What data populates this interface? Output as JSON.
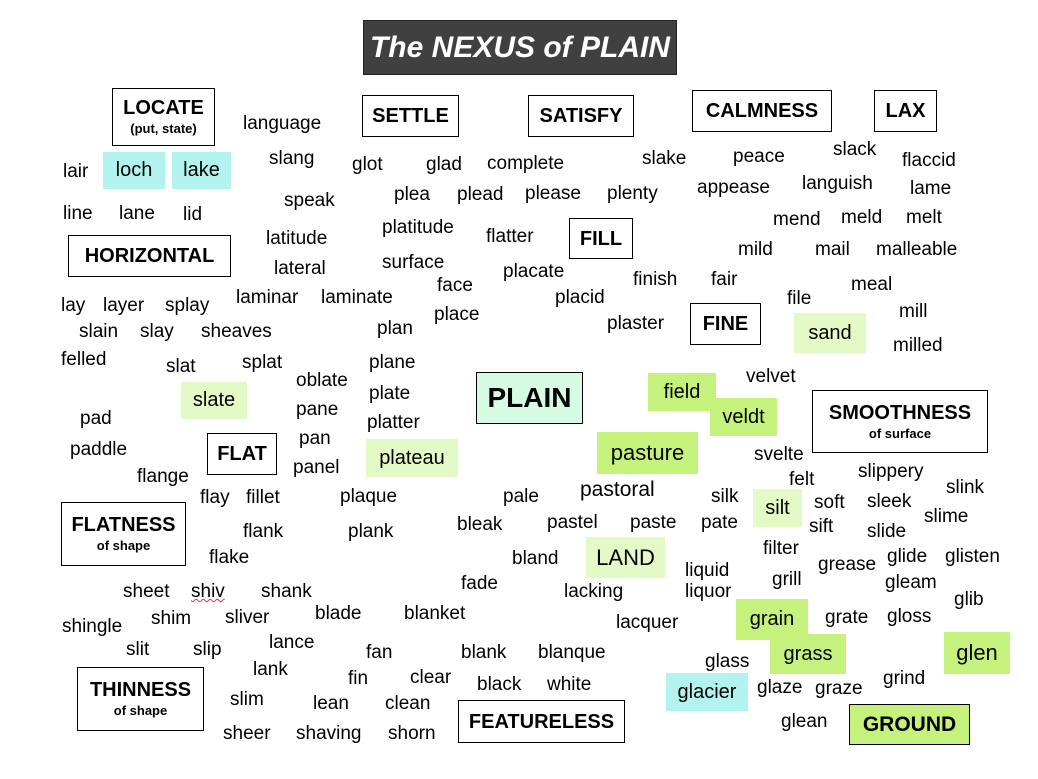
{
  "title": "The NEXUS of PLAIN",
  "center": "PLAIN",
  "categories": {
    "locate": {
      "label": "LOCATE",
      "sub": "(put, state)"
    },
    "settle": {
      "label": "SETTLE"
    },
    "satisfy": {
      "label": "SATISFY"
    },
    "calmness": {
      "label": "CALMNESS"
    },
    "lax": {
      "label": "LAX"
    },
    "horizontal": {
      "label": "HORIZONTAL"
    },
    "fill": {
      "label": "FILL"
    },
    "fine": {
      "label": "FINE"
    },
    "smoothness": {
      "label": "SMOOTHNESS",
      "sub": "of surface"
    },
    "flat": {
      "label": "FLAT"
    },
    "flatness": {
      "label": "FLATNESS",
      "sub": "of shape"
    },
    "thinness": {
      "label": "THINNESS",
      "sub": "of shape"
    },
    "featureless": {
      "label": "FEATURELESS"
    },
    "ground": {
      "label": "GROUND"
    }
  },
  "words": [
    "language",
    "slang",
    "speak",
    "glot",
    "glad",
    "complete",
    "plea",
    "plead",
    "please",
    "plenty",
    "platitude",
    "flatter",
    "latitude",
    "lateral",
    "surface",
    "slake",
    "peace",
    "slack",
    "flaccid",
    "appease",
    "languish",
    "lame",
    "mend",
    "meld",
    "melt",
    "mild",
    "mail",
    "malleable",
    "lair",
    "line",
    "lane",
    "lid",
    "placate",
    "finish",
    "fair",
    "face",
    "placid",
    "place",
    "laminar",
    "laminate",
    "lay",
    "layer",
    "splay",
    "slain",
    "slay",
    "sheaves",
    "plan",
    "plaster",
    "file",
    "meal",
    "mill",
    "milled",
    "felled",
    "slat",
    "splat",
    "plane",
    "oblate",
    "plate",
    "velvet",
    "pad",
    "pane",
    "platter",
    "paddle",
    "pan",
    "panel",
    "flange",
    "svelte",
    "felt",
    "slippery",
    "slink",
    "flay",
    "fillet",
    "plaque",
    "pale",
    "pastoral",
    "silk",
    "soft",
    "sleek",
    "slime",
    "flank",
    "plank",
    "bleak",
    "pastel",
    "paste",
    "pate",
    "sift",
    "slide",
    "flake",
    "bland",
    "filter",
    "grease",
    "glide",
    "glisten",
    "fade",
    "liquid",
    "grill",
    "gleam",
    "sheet",
    "shiv",
    "shank",
    "lacking",
    "liquor",
    "glib",
    "shim",
    "sliver",
    "blade",
    "blanket",
    "lacquer",
    "grate",
    "gloss",
    "shingle",
    "lance",
    "slit",
    "slip",
    "blank",
    "blanque",
    "fan",
    "glass",
    "lank",
    "fin",
    "clear",
    "black",
    "white",
    "grind",
    "slim",
    "lean",
    "clean",
    "glaze",
    "graze",
    "sheer",
    "shaving",
    "shorn",
    "glean"
  ],
  "highlighted": {
    "loch": "loch",
    "lake": "lake",
    "sand": "sand",
    "slate": "slate",
    "field": "field",
    "veldt": "veldt",
    "plateau": "plateau",
    "pasture": "pasture",
    "silt": "silt",
    "land": "LAND",
    "grain": "grain",
    "grass": "grass",
    "glen": "glen",
    "glacier": "glacier"
  },
  "colors": {
    "title_bg": "#404040",
    "center_bg": "#d6fbe3",
    "water": "#b3f3ef",
    "pale_green": "#e3f9c6",
    "lime_green": "#c4f27c"
  }
}
